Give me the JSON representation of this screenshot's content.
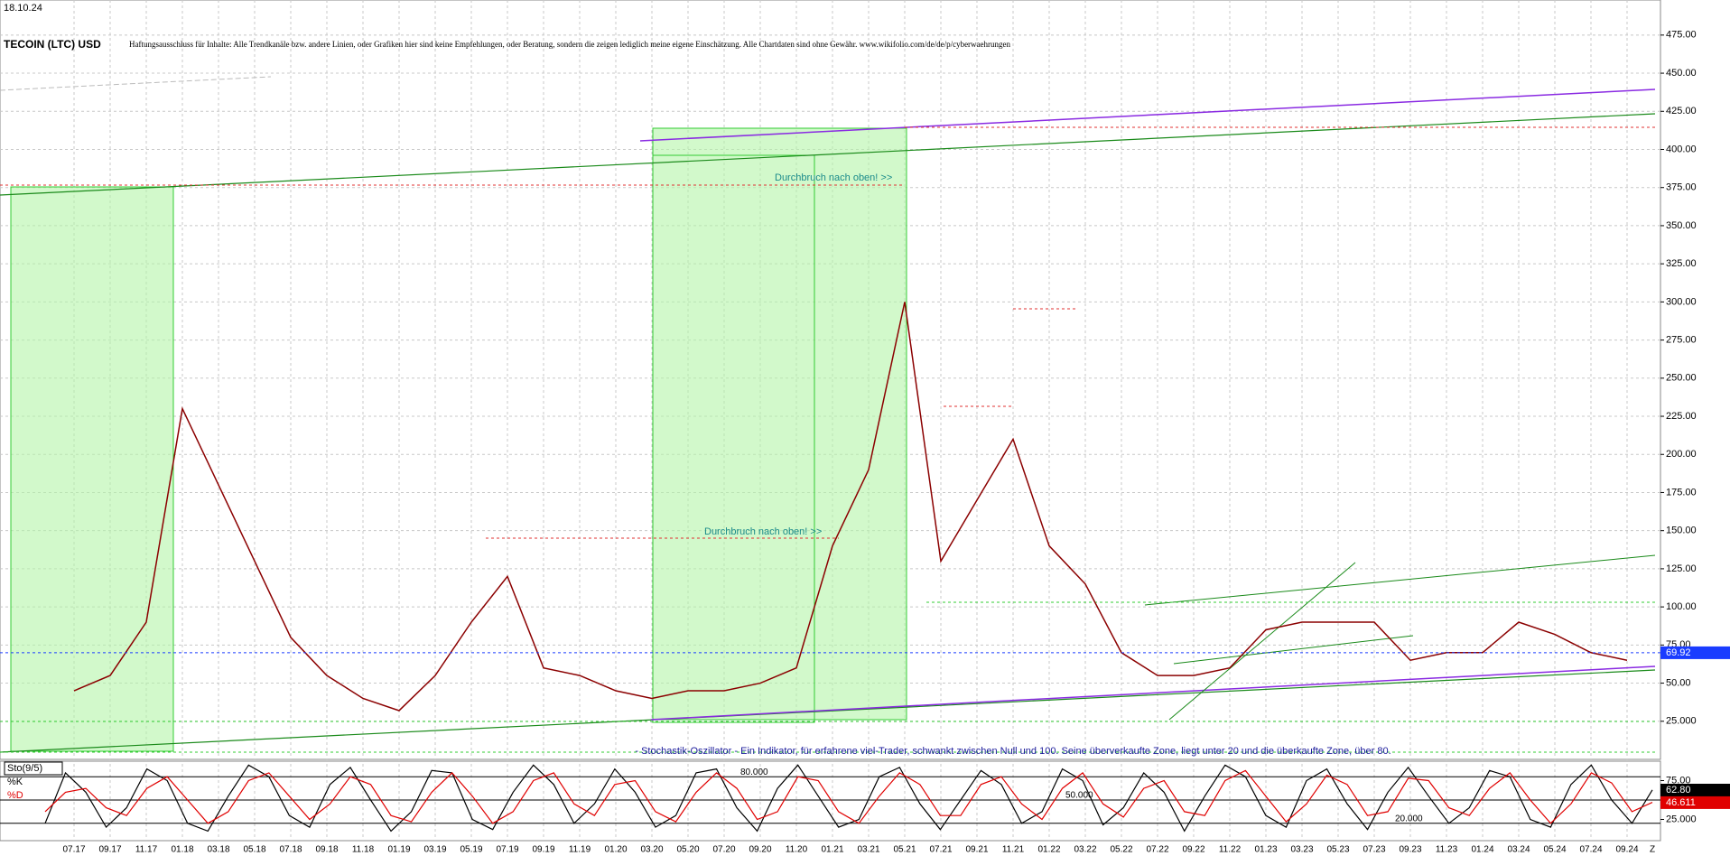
{
  "chart_data": [
    {
      "type": "line",
      "date": "18.10.24",
      "title": "TECOIN (LTC) USD",
      "subtitle": "Haftungsausschluss für Inhalte: Alle Trendkanäle bzw. andere Linien, oder Grafiken hier sind keine Empfehlungen, oder Beratung, sondern die zeigen lediglich meine eigene Einschätzung. Alle Chartdaten sind ohne Gewähr.  www.wikifolio.com/de/de/p/cyberwaehrungen",
      "annotations": [
        "Durchbruch nach oben! >>",
        "Durchbruch nach oben! >>",
        "- Stochastik-Oszillator - Ein Indikator, für erfahrene viel-Trader, schwankt zwischen Null und 100. Seine überverkaufte Zone, liegt unter 20 und die überkaufte Zone, über 80."
      ],
      "categories": [
        "07.17",
        "09.17",
        "11.17",
        "01.18",
        "03.18",
        "05.18",
        "07.18",
        "09.18",
        "11.18",
        "01.19",
        "03.19",
        "05.19",
        "07.19",
        "09.19",
        "11.19",
        "01.20",
        "03.20",
        "05.20",
        "07.20",
        "09.20",
        "11.20",
        "01.21",
        "03.21",
        "05.21",
        "07.21",
        "09.21",
        "11.21",
        "01.22",
        "03.22",
        "05.22",
        "07.22",
        "09.22",
        "11.22",
        "01.23",
        "03.23",
        "05.23",
        "07.23",
        "09.23",
        "11.23",
        "01.24",
        "03.24",
        "05.24",
        "07.24",
        "09.24"
      ],
      "series": [
        {
          "name": "LTC",
          "color": "#8b0000",
          "values": [
            45,
            55,
            90,
            230,
            180,
            130,
            80,
            55,
            40,
            32,
            55,
            90,
            120,
            60,
            55,
            45,
            40,
            45,
            45,
            50,
            60,
            140,
            190,
            300,
            130,
            170,
            210,
            140,
            115,
            70,
            55,
            55,
            60,
            85,
            90,
            90,
            90,
            65,
            70,
            70,
            90,
            82,
            70,
            65
          ]
        }
      ],
      "last_price": {
        "value": 69.92,
        "label": "69.92",
        "color": "#1a3cff"
      },
      "ylim": [
        0,
        498
      ],
      "yticks": [
        {
          "value": 25,
          "label": "25.000"
        },
        {
          "value": 50,
          "label": "50.00"
        },
        {
          "value": 75,
          "label": "75.00"
        },
        {
          "value": 100,
          "label": "100.00"
        },
        {
          "value": 125,
          "label": "125.00"
        },
        {
          "value": 150,
          "label": "150.00"
        },
        {
          "value": 175,
          "label": "175.00"
        },
        {
          "value": 200,
          "label": "200.00"
        },
        {
          "value": 225,
          "label": "225.00"
        },
        {
          "value": 250,
          "label": "250.00"
        },
        {
          "value": 275,
          "label": "275.00"
        },
        {
          "value": 300,
          "label": "300.00"
        },
        {
          "value": 325,
          "label": "325.00"
        },
        {
          "value": 350,
          "label": "350.00"
        },
        {
          "value": 375,
          "label": "375.00"
        },
        {
          "value": 400,
          "label": "400.00"
        },
        {
          "value": 425,
          "label": "425.00"
        },
        {
          "value": 450,
          "label": "450.00"
        },
        {
          "value": 475,
          "label": "475.00"
        }
      ],
      "x_end_label": "Z",
      "grid": true
    },
    {
      "type": "line",
      "title": "Sto(9/5)",
      "series": [
        {
          "name": "%K",
          "color": "#000000",
          "values": [
            20,
            85,
            60,
            15,
            40,
            90,
            75,
            20,
            10,
            55,
            95,
            80,
            30,
            15,
            70,
            92,
            50,
            10,
            35,
            88,
            85,
            25,
            12,
            60,
            95,
            70,
            20,
            45,
            90,
            60,
            15,
            30,
            85,
            90,
            40,
            10,
            65,
            95,
            55,
            15,
            25,
            80,
            92,
            45,
            12,
            50,
            88,
            70,
            20,
            35,
            90,
            75,
            18,
            40,
            85,
            60,
            10,
            55,
            95,
            80,
            30,
            15,
            75,
            90,
            45,
            12,
            60,
            92,
            55,
            20,
            40,
            88,
            80,
            25,
            15,
            70,
            95,
            50,
            20,
            63
          ],
          "current": {
            "value": 62.8,
            "label": "62.80"
          }
        },
        {
          "name": "%D",
          "color": "#e00000",
          "values": [
            35,
            60,
            65,
            40,
            30,
            65,
            80,
            50,
            20,
            35,
            75,
            85,
            55,
            25,
            45,
            80,
            70,
            30,
            22,
            60,
            85,
            55,
            20,
            35,
            75,
            85,
            45,
            30,
            70,
            75,
            35,
            22,
            60,
            85,
            65,
            25,
            35,
            80,
            75,
            35,
            20,
            55,
            85,
            70,
            30,
            30,
            70,
            80,
            45,
            25,
            65,
            85,
            45,
            28,
            65,
            75,
            35,
            30,
            75,
            88,
            55,
            22,
            45,
            82,
            70,
            30,
            35,
            78,
            75,
            40,
            30,
            65,
            85,
            50,
            20,
            45,
            85,
            72,
            35,
            47
          ],
          "current": {
            "value": 46.611,
            "label": "46.611"
          }
        }
      ],
      "levels": [
        {
          "value": 80,
          "label": "80.000"
        },
        {
          "value": 50,
          "label": "50.000"
        },
        {
          "value": 20,
          "label": "20.000"
        }
      ],
      "ylim": [
        0,
        100
      ],
      "yticks": [
        {
          "value": 75,
          "label": "75.00"
        },
        {
          "value": 25,
          "label": "25.000"
        }
      ]
    }
  ]
}
